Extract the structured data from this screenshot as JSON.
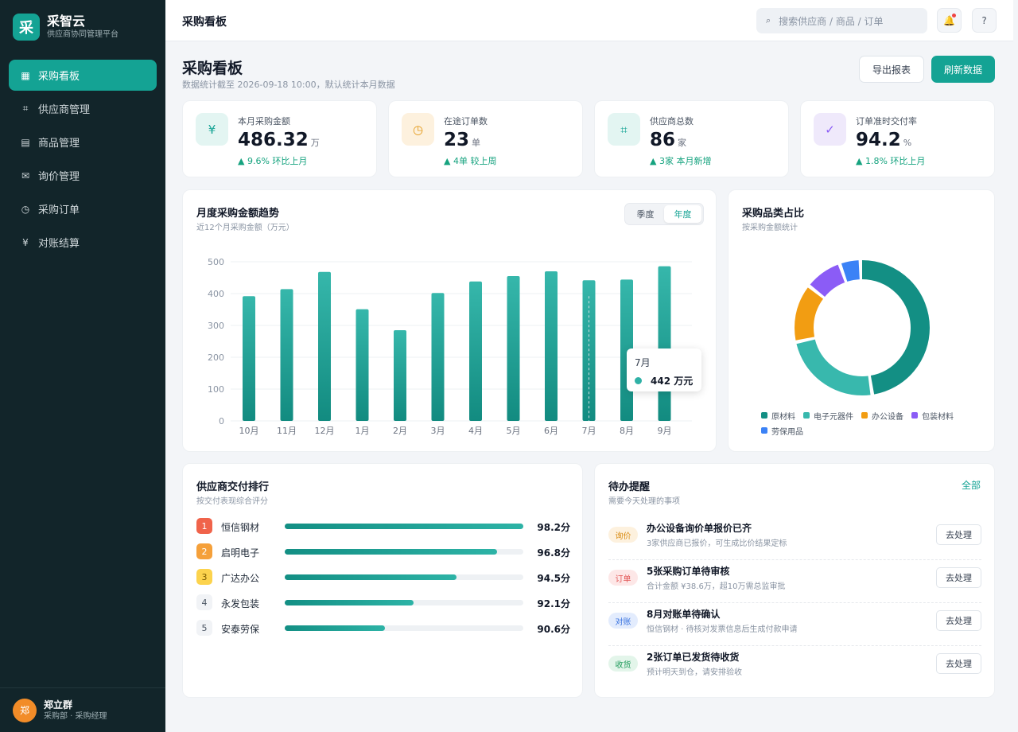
{
  "app": {
    "logo_char": "采",
    "name": "采智云",
    "subtitle": "供应商协同管理平台"
  },
  "nav": [
    {
      "label": "采购看板",
      "icon": "grid-icon",
      "glyph": "▦",
      "active": true
    },
    {
      "label": "供应商管理",
      "icon": "hash-icon",
      "glyph": "⌗",
      "active": false
    },
    {
      "label": "商品管理",
      "icon": "list-icon",
      "glyph": "▤",
      "active": false
    },
    {
      "label": "询价管理",
      "icon": "mail-icon",
      "glyph": "✉",
      "active": false
    },
    {
      "label": "采购订单",
      "icon": "clock-icon",
      "glyph": "◷",
      "active": false
    },
    {
      "label": "对账结算",
      "icon": "yen-icon",
      "glyph": "¥",
      "active": false
    }
  ],
  "user": {
    "avatar_char": "郑",
    "name": "郑立群",
    "role": "采购部 · 采购经理"
  },
  "topbar": {
    "title": "采购看板",
    "search_placeholder": "搜索供应商 / 商品 / 订单",
    "bell_glyph": "🔔",
    "help_glyph": "?"
  },
  "page": {
    "title": "采购看板",
    "subtitle": "数据统计截至 2026-09-18 10:00，默认统计本月数据",
    "export_label": "导出报表",
    "refresh_label": "刷新数据"
  },
  "kpis": [
    {
      "label": "本月采购金额",
      "value": "486.32",
      "unit": "万",
      "trend": "▲ 9.6% 环比上月",
      "glyph": "¥",
      "icon": "yen-icon",
      "bg": "#e3f5f2",
      "fg": "#14a394"
    },
    {
      "label": "在途订单数",
      "value": "23",
      "unit": "单",
      "trend": "▲ 4单 较上周",
      "glyph": "◷",
      "icon": "clock-icon",
      "bg": "#fdf1de",
      "fg": "#e49a1a"
    },
    {
      "label": "供应商总数",
      "value": "86",
      "unit": "家",
      "trend": "▲ 3家 本月新增",
      "glyph": "⌗",
      "icon": "hash-icon",
      "bg": "#e3f5f2",
      "fg": "#14a394"
    },
    {
      "label": "订单准时交付率",
      "value": "94.2",
      "unit": "%",
      "trend": "▲ 1.8% 环比上月",
      "glyph": "✓",
      "icon": "check-icon",
      "bg": "#efe9fb",
      "fg": "#8b5cf6"
    }
  ],
  "trend_card": {
    "title": "月度采购金额趋势",
    "subtitle": "近12个月采购金额（万元）",
    "segments": [
      {
        "label": "季度",
        "on": false
      },
      {
        "label": "年度",
        "on": true
      }
    ],
    "tooltip": {
      "month": "7月",
      "value": "442 万元"
    }
  },
  "chart_data": [
    {
      "type": "bar",
      "title": "月度采购金额趋势",
      "subtitle": "近12个月采购金额（万元）",
      "categories": [
        "10月",
        "11月",
        "12月",
        "1月",
        "2月",
        "3月",
        "4月",
        "5月",
        "6月",
        "7月",
        "8月",
        "9月"
      ],
      "values": [
        392,
        414,
        468,
        351,
        285,
        402,
        438,
        455,
        470,
        442,
        444,
        486
      ],
      "ylim": [
        0,
        500
      ],
      "yticks": [
        0,
        100,
        200,
        300,
        400,
        500
      ],
      "grid": true,
      "color": "#1ea89b"
    },
    {
      "type": "pie",
      "title": "采购品类占比",
      "subtitle": "按采购金额统计",
      "categories": [
        "原材料",
        "电子元器件",
        "办公设备",
        "包装材料",
        "劳保用品"
      ],
      "values": [
        48,
        24,
        14,
        9,
        5
      ],
      "colors": [
        "#138f84",
        "#38b8ad",
        "#f29d12",
        "#8b5cf6",
        "#3b82f6"
      ],
      "legend": "bottom"
    }
  ],
  "category_card": {
    "title": "采购品类占比",
    "subtitle": "按采购金额统计"
  },
  "ranking": {
    "title": "供应商交付排行",
    "subtitle": "按交付表现综合评分",
    "items": [
      {
        "rank": "1",
        "name": "恒信钢材",
        "score": "98.2分",
        "pct": 100,
        "bg": "#f0634a",
        "fg": "#ffffff"
      },
      {
        "rank": "2",
        "name": "启明电子",
        "score": "96.8分",
        "pct": 89,
        "bg": "#f5a03a",
        "fg": "#ffffff"
      },
      {
        "rank": "3",
        "name": "广达办公",
        "score": "94.5分",
        "pct": 72,
        "bg": "#fcd34d",
        "fg": "#7a5a00"
      },
      {
        "rank": "4",
        "name": "永发包装",
        "score": "92.1分",
        "pct": 54,
        "bg": "#f1f3f6",
        "fg": "#4b5563"
      },
      {
        "rank": "5",
        "name": "安泰劳保",
        "score": "90.6分",
        "pct": 42,
        "bg": "#f1f3f6",
        "fg": "#4b5563"
      }
    ]
  },
  "todos": {
    "title": "待办提醒",
    "subtitle": "需要今天处理的事项",
    "all_label": "全部",
    "items": [
      {
        "tag": "询价",
        "tag_bg": "#fdf1de",
        "tag_fg": "#d88a10",
        "title": "办公设备询价单报价已齐",
        "desc": "3家供应商已报价，可生成比价结果定标",
        "action": "去处理"
      },
      {
        "tag": "订单",
        "tag_bg": "#fde7e7",
        "tag_fg": "#e25555",
        "title": "5张采购订单待审核",
        "desc": "合计金额 ¥38.6万，超10万需总监审批",
        "action": "去处理"
      },
      {
        "tag": "对账",
        "tag_bg": "#e3ecfd",
        "tag_fg": "#3b74e0",
        "title": "8月对账单待确认",
        "desc": "恒信钢材 · 待核对发票信息后生成付款申请",
        "action": "去处理"
      },
      {
        "tag": "收货",
        "tag_bg": "#e3f5ea",
        "tag_fg": "#1e9a5a",
        "title": "2张订单已发货待收货",
        "desc": "预计明天到仓，请安排验收",
        "action": "去处理"
      }
    ]
  }
}
